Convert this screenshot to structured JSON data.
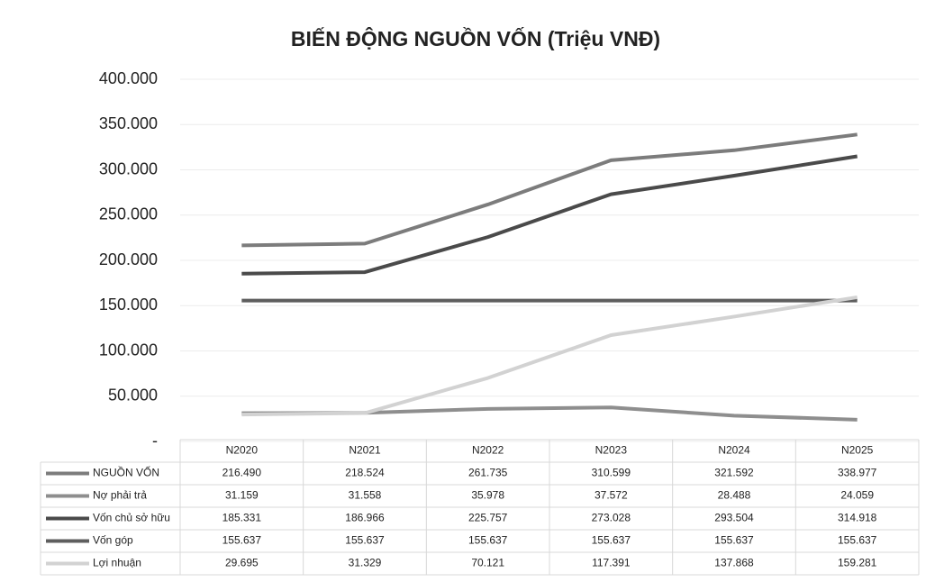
{
  "chart_data": {
    "type": "line",
    "title": "BIẾN ĐỘNG NGUỒN VỐN (Triệu VNĐ)",
    "categories": [
      "N2020",
      "N2021",
      "N2022",
      "N2023",
      "N2024",
      "N2025"
    ],
    "series": [
      {
        "name": "NGUỒN VỐN",
        "color": "#7c7c7c",
        "values": [
          216490,
          218524,
          261735,
          310599,
          321592,
          338977
        ],
        "value_labels": [
          "216.490",
          "218.524",
          "261.735",
          "310.599",
          "321.592",
          "338.977"
        ]
      },
      {
        "name": "Nợ phải trả",
        "color": "#8e8e8e",
        "values": [
          31159,
          31558,
          35978,
          37572,
          28488,
          24059
        ],
        "value_labels": [
          "31.159",
          "31.558",
          "35.978",
          "37.572",
          "28.488",
          "24.059"
        ]
      },
      {
        "name": "Vốn chủ sở hữu",
        "color": "#4a4a4a",
        "values": [
          185331,
          186966,
          225757,
          273028,
          293504,
          314918
        ],
        "value_labels": [
          "185.331",
          "186.966",
          "225.757",
          "273.028",
          "293.504",
          "314.918"
        ]
      },
      {
        "name": "Vốn góp",
        "color": "#5e5e5e",
        "values": [
          155637,
          155637,
          155637,
          155637,
          155637,
          155637
        ],
        "value_labels": [
          "155.637",
          "155.637",
          "155.637",
          "155.637",
          "155.637",
          "155.637"
        ]
      },
      {
        "name": "Lợi nhuận",
        "color": "#d2d2d2",
        "values": [
          29695,
          31329,
          70121,
          117391,
          137868,
          159281
        ],
        "value_labels": [
          "29.695",
          "31.329",
          "70.121",
          "117.391",
          "137.868",
          "159.281"
        ]
      }
    ],
    "ylim": [
      0,
      400000
    ],
    "yticks": [
      {
        "value": 0,
        "label": "-"
      },
      {
        "value": 50000,
        "label": "50.000"
      },
      {
        "value": 100000,
        "label": "100.000"
      },
      {
        "value": 150000,
        "label": "150.000"
      },
      {
        "value": 200000,
        "label": "200.000"
      },
      {
        "value": 250000,
        "label": "250.000"
      },
      {
        "value": 300000,
        "label": "300.000"
      },
      {
        "value": 350000,
        "label": "350.000"
      },
      {
        "value": 400000,
        "label": "400.000"
      }
    ],
    "grid": true
  }
}
